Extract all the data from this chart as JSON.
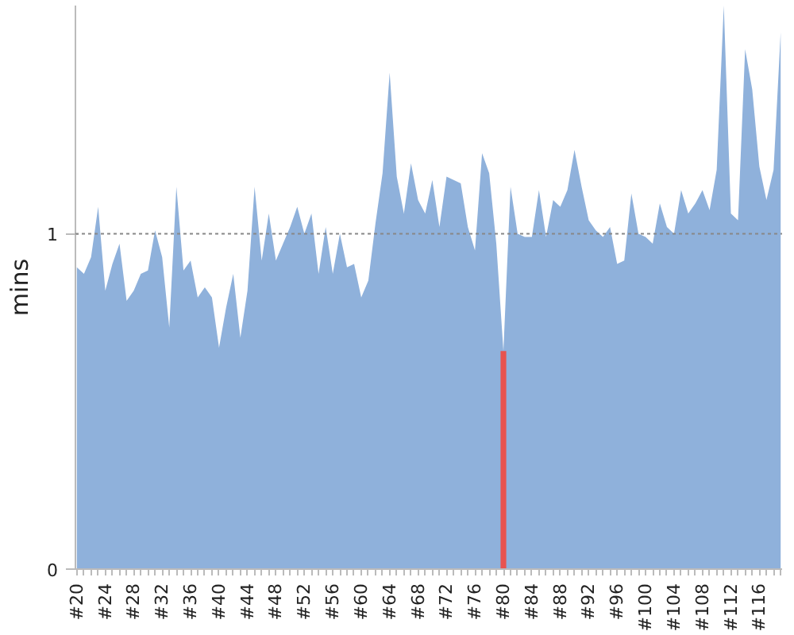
{
  "chart_data": {
    "type": "area",
    "ylabel": "mins",
    "categories": [
      "#20",
      null,
      null,
      null,
      "#24",
      null,
      null,
      null,
      "#28",
      null,
      null,
      null,
      "#32",
      null,
      null,
      null,
      "#36",
      null,
      null,
      null,
      "#40",
      null,
      null,
      null,
      "#44",
      null,
      null,
      null,
      "#48",
      null,
      null,
      null,
      "#52",
      null,
      null,
      null,
      "#56",
      null,
      null,
      null,
      "#60",
      null,
      null,
      null,
      "#64",
      null,
      null,
      null,
      "#68",
      null,
      null,
      null,
      "#72",
      null,
      null,
      null,
      "#76",
      null,
      null,
      null,
      "#80",
      null,
      null,
      null,
      "#84",
      null,
      null,
      null,
      "#88",
      null,
      null,
      null,
      "#92",
      null,
      null,
      null,
      "#96",
      null,
      null,
      null,
      "#100",
      null,
      null,
      null,
      "#104",
      null,
      null,
      null,
      "#108",
      null,
      null,
      null,
      "#112",
      null,
      null,
      null,
      "#116",
      null,
      null,
      null
    ],
    "series": [
      {
        "color": "#8fb1db",
        "values": [
          0.9,
          0.88,
          0.93,
          1.08,
          0.83,
          0.91,
          0.97,
          0.8,
          0.83,
          0.88,
          0.89,
          1.01,
          0.93,
          0.72,
          1.14,
          0.89,
          0.92,
          0.81,
          0.84,
          0.81,
          0.66,
          0.78,
          0.88,
          0.69,
          0.83,
          1.14,
          0.92,
          1.06,
          0.92,
          0.97,
          1.02,
          1.08,
          1.0,
          1.06,
          0.88,
          1.02,
          0.88,
          1.0,
          0.9,
          0.91,
          0.81,
          0.86,
          1.03,
          1.18,
          1.48,
          1.17,
          1.06,
          1.21,
          1.1,
          1.06,
          1.16,
          1.02,
          1.17,
          1.16,
          1.15,
          1.02,
          0.95,
          1.24,
          1.18,
          0.97,
          0.65,
          1.14,
          1.0,
          0.99,
          0.99,
          1.13,
          0.99,
          1.1,
          1.08,
          1.13,
          1.25,
          1.14,
          1.04,
          1.01,
          0.99,
          1.02,
          0.91,
          0.92,
          1.12,
          1.0,
          0.99,
          0.97,
          1.09,
          1.02,
          1.0,
          1.13,
          1.06,
          1.09,
          1.13,
          1.07,
          1.19,
          1.68,
          1.06,
          1.04,
          1.55,
          1.43,
          1.2,
          1.1,
          1.19,
          1.6
        ]
      },
      {
        "type": "bar",
        "color": "#e8534f",
        "values": [
          null,
          null,
          null,
          null,
          null,
          null,
          null,
          null,
          null,
          null,
          null,
          null,
          null,
          null,
          null,
          null,
          null,
          null,
          null,
          null,
          null,
          null,
          null,
          null,
          null,
          null,
          null,
          null,
          null,
          null,
          null,
          null,
          null,
          null,
          null,
          null,
          null,
          null,
          null,
          null,
          null,
          null,
          null,
          null,
          null,
          null,
          null,
          null,
          null,
          null,
          null,
          null,
          null,
          null,
          null,
          null,
          null,
          null,
          null,
          null,
          0.65,
          null,
          null,
          null,
          null,
          null,
          null,
          null,
          null,
          null,
          null,
          null,
          null,
          null,
          null,
          null,
          null,
          null,
          null,
          null,
          null,
          null,
          null,
          null,
          null,
          null,
          null,
          null,
          null,
          null,
          null,
          null,
          null,
          null,
          null,
          null,
          null,
          null,
          null,
          null
        ]
      }
    ],
    "ylim": [
      0,
      1.68
    ],
    "yticks": [
      0,
      1
    ],
    "ref_lines": [
      {
        "axis": "y",
        "value": 1,
        "color": "#888888",
        "line_style": "dashed"
      }
    ],
    "grid": false
  }
}
